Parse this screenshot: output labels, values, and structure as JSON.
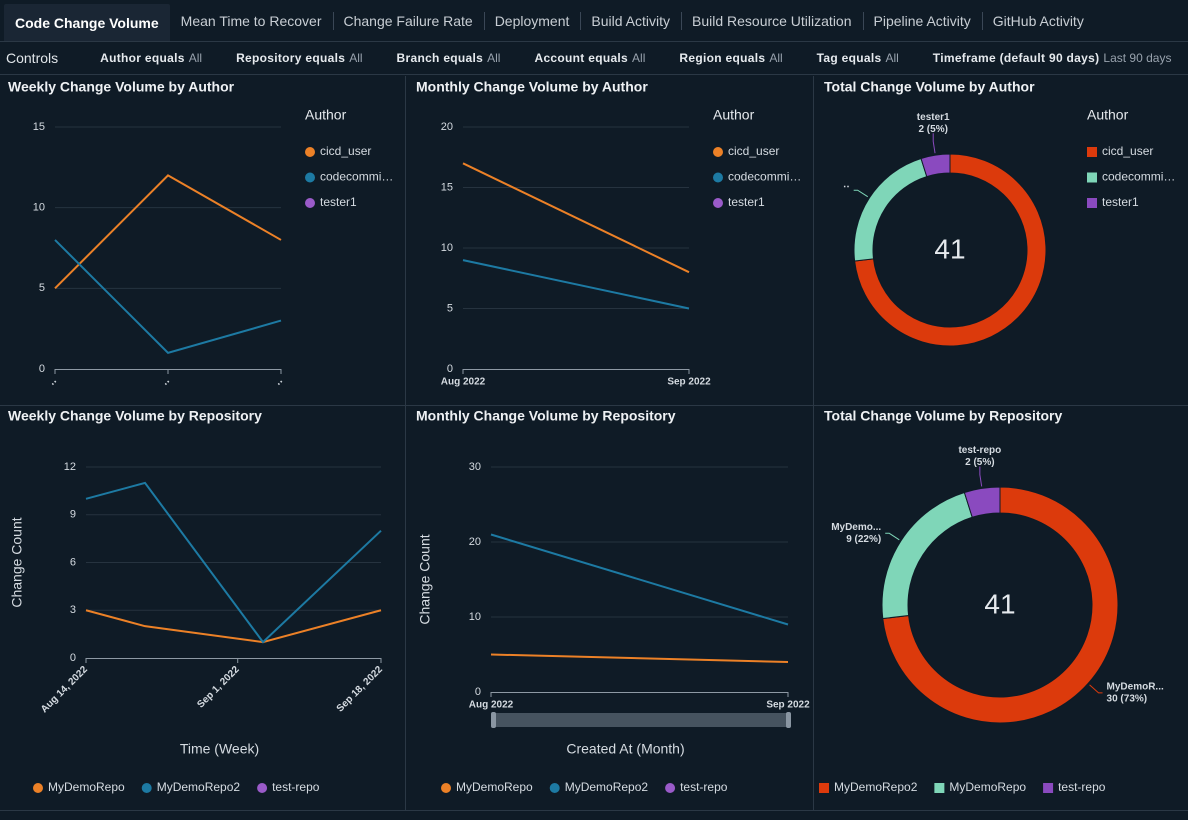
{
  "tabs": [
    "Code Change Volume",
    "Mean Time to Recover",
    "Change Failure Rate",
    "Deployment",
    "Build Activity",
    "Build Resource Utilization",
    "Pipeline Activity",
    "GitHub Activity"
  ],
  "active_tab": 0,
  "controls": {
    "title": "Controls",
    "filters": [
      {
        "label": "Author equals",
        "value": "All"
      },
      {
        "label": "Repository equals",
        "value": "All"
      },
      {
        "label": "Branch equals",
        "value": "All"
      },
      {
        "label": "Account equals",
        "value": "All"
      },
      {
        "label": "Region equals",
        "value": "All"
      },
      {
        "label": "Tag equals",
        "value": "All"
      },
      {
        "label": "Timeframe (default 90 days)",
        "value": "Last 90 days"
      }
    ]
  },
  "chart_data": [
    {
      "type": "line",
      "title": "Weekly Change Volume by Author",
      "legend_title": "Author",
      "legend": "right",
      "categories": [
        "‥",
        "‥",
        "‥"
      ],
      "x_label_rotation": -45,
      "ylim": [
        0,
        15
      ],
      "yticks": [
        0,
        5,
        10,
        15
      ],
      "grid": true,
      "series": [
        {
          "name": "cicd_user",
          "color": "#ec8127",
          "values": [
            5,
            12,
            8
          ]
        },
        {
          "name": "codecommi…",
          "color": "#1d7aa3",
          "values": [
            8,
            1,
            3
          ]
        },
        {
          "name": "tester1",
          "color": "#9a5bc9",
          "values": [
            null,
            null,
            null
          ]
        }
      ]
    },
    {
      "type": "line",
      "title": "Monthly Change Volume by Author",
      "legend_title": "Author",
      "legend": "right",
      "categories": [
        "Aug 2022",
        "Sep 2022"
      ],
      "ylim": [
        0,
        20
      ],
      "yticks": [
        0,
        5,
        10,
        15,
        20
      ],
      "grid": true,
      "series": [
        {
          "name": "cicd_user",
          "color": "#ec8127",
          "values": [
            17,
            8
          ]
        },
        {
          "name": "codecommi…",
          "color": "#1d7aa3",
          "values": [
            9,
            5
          ]
        },
        {
          "name": "tester1",
          "color": "#9a5bc9",
          "values": [
            null,
            null
          ]
        }
      ]
    },
    {
      "type": "donut",
      "title": "Total Change Volume by Author",
      "legend_title": "Author",
      "legend": "right",
      "total": 41,
      "categories": [
        "cicd_user",
        "codecommi…",
        "tester1"
      ],
      "slice_names": [
        null,
        "‥",
        "tester1"
      ],
      "values": [
        30,
        9,
        2
      ],
      "value_labels": [
        null,
        null,
        "2 (5%)"
      ],
      "colors": [
        "#dc3a0c",
        "#7fd6b8",
        "#8a4abf"
      ]
    },
    {
      "type": "line",
      "title": "Weekly Change Volume by Repository",
      "legend": "bottom",
      "xlabel": "Time (Week)",
      "ylabel": "Change Count",
      "x_label_rotation": -45,
      "x": [
        "2022-08-14",
        "2022-08-21",
        "2022-09-04",
        "2022-09-18"
      ],
      "xlim": [
        "2022-08-14",
        "2022-09-18"
      ],
      "xticks": [
        {
          "value": "2022-08-14",
          "label": "Aug 14, 2022"
        },
        {
          "value": "2022-09-01",
          "label": "Sep 1, 2022"
        },
        {
          "value": "2022-09-18",
          "label": "Sep 18, 2022"
        }
      ],
      "ylim": [
        0,
        12
      ],
      "yticks": [
        0,
        3,
        6,
        9,
        12
      ],
      "grid": true,
      "series": [
        {
          "name": "MyDemoRepo",
          "color": "#ec8127",
          "values": [
            3,
            2,
            1,
            3
          ]
        },
        {
          "name": "MyDemoRepo2",
          "color": "#1d7aa3",
          "values": [
            10,
            11,
            1,
            8
          ]
        },
        {
          "name": "test-repo",
          "color": "#9a5bc9",
          "values": [
            null,
            null,
            null,
            null
          ]
        }
      ]
    },
    {
      "type": "line",
      "title": "Monthly Change Volume by Repository",
      "legend": "bottom",
      "xlabel": "Created At (Month)",
      "ylabel": "Change Count",
      "categories": [
        "Aug 2022",
        "Sep 2022"
      ],
      "ylim": [
        0,
        30
      ],
      "yticks": [
        0,
        10,
        20,
        30
      ],
      "grid": true,
      "series": [
        {
          "name": "MyDemoRepo",
          "color": "#ec8127",
          "values": [
            5,
            4
          ]
        },
        {
          "name": "MyDemoRepo2",
          "color": "#1d7aa3",
          "values": [
            21,
            9
          ]
        },
        {
          "name": "test-repo",
          "color": "#9a5bc9",
          "values": [
            null,
            null
          ]
        }
      ]
    },
    {
      "type": "donut",
      "title": "Total Change Volume by Repository",
      "legend": "bottom",
      "total": 41,
      "categories": [
        "MyDemoRepo2",
        "MyDemoRepo",
        "test-repo"
      ],
      "slice_names": [
        "MyDemoR...",
        "MyDemo...",
        "test-repo"
      ],
      "values": [
        30,
        9,
        2
      ],
      "value_labels": [
        "30 (73%)",
        "9 (22%)",
        "2 (5%)"
      ],
      "colors": [
        "#dc3a0c",
        "#7fd6b8",
        "#8a4abf"
      ]
    }
  ]
}
